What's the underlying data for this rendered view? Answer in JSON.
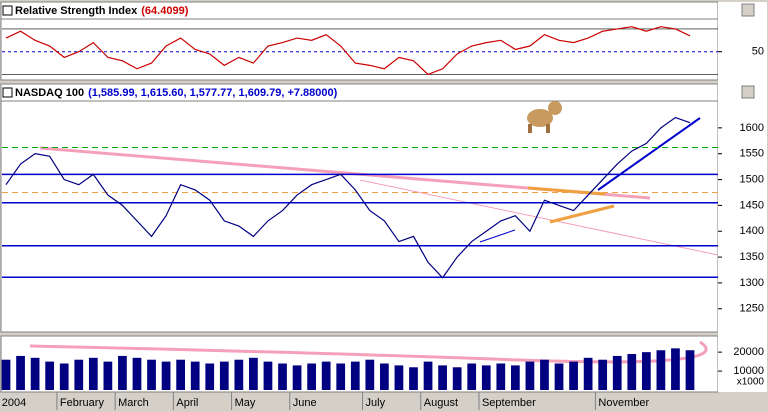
{
  "chart_data": [
    {
      "type": "line",
      "title": "Relative Strength Index",
      "title_value": "(64.4099)",
      "color": "#cc0000",
      "values": [
        62,
        68,
        60,
        55,
        45,
        50,
        58,
        45,
        42,
        35,
        40,
        55,
        62,
        52,
        48,
        38,
        45,
        40,
        55,
        58,
        62,
        60,
        65,
        55,
        40,
        38,
        35,
        45,
        42,
        30,
        35,
        48,
        55,
        58,
        60,
        52,
        55,
        65,
        60,
        58,
        62,
        68,
        70,
        72,
        68,
        72,
        70,
        64
      ],
      "ylim": [
        26,
        77
      ],
      "yticks": [
        50
      ],
      "reference_lines": [
        70,
        30
      ]
    },
    {
      "type": "line",
      "title": "NASDAQ 100",
      "title_value": "(1,585.99, 1,615.60, 1,577.77, 1,609.79, +7.88000)",
      "color": "#000080",
      "values": [
        1490,
        1530,
        1550,
        1545,
        1500,
        1490,
        1510,
        1470,
        1450,
        1420,
        1390,
        1430,
        1490,
        1480,
        1460,
        1420,
        1410,
        1390,
        1420,
        1440,
        1470,
        1490,
        1500,
        1510,
        1480,
        1440,
        1420,
        1380,
        1390,
        1340,
        1310,
        1350,
        1380,
        1400,
        1420,
        1430,
        1400,
        1460,
        1450,
        1440,
        1470,
        1500,
        1530,
        1555,
        1570,
        1600,
        1620,
        1610
      ],
      "ylim": [
        1207,
        1650
      ],
      "yticks": [
        1250,
        1300,
        1350,
        1400,
        1450,
        1500,
        1550,
        1600
      ],
      "levels": [
        1510,
        1455,
        1372,
        1311
      ],
      "level_color": "#0000cc",
      "guide_lines": [
        {
          "value": 1562,
          "color": "#00aa00"
        },
        {
          "value": 1475,
          "color": "#f0a040"
        }
      ]
    },
    {
      "type": "bar",
      "color": "#000080",
      "categories": [
        "2004",
        null,
        null,
        null,
        "February",
        null,
        null,
        null,
        "March",
        null,
        null,
        null,
        "April",
        null,
        null,
        null,
        "May",
        null,
        null,
        null,
        "June",
        null,
        null,
        null,
        null,
        "July",
        null,
        null,
        null,
        "August",
        null,
        null,
        null,
        "September",
        null,
        null,
        null,
        null,
        null,
        null,
        null,
        "November",
        null,
        null,
        null,
        null,
        null,
        null
      ],
      "values": [
        16000,
        18000,
        17000,
        15000,
        14000,
        16000,
        17000,
        15000,
        18000,
        17000,
        16000,
        15000,
        16000,
        15000,
        14000,
        15000,
        16000,
        17000,
        15000,
        14000,
        13000,
        14000,
        15000,
        14000,
        15000,
        16000,
        14000,
        13000,
        12000,
        15000,
        13000,
        12000,
        14000,
        13000,
        14000,
        13000,
        15000,
        16000,
        14000,
        15000,
        17000,
        16000,
        18000,
        19000,
        20000,
        21000,
        22000,
        21000
      ],
      "ylim": [
        0,
        28000
      ],
      "yticks": [
        10000,
        20000
      ],
      "unit_label": "x1000"
    }
  ]
}
